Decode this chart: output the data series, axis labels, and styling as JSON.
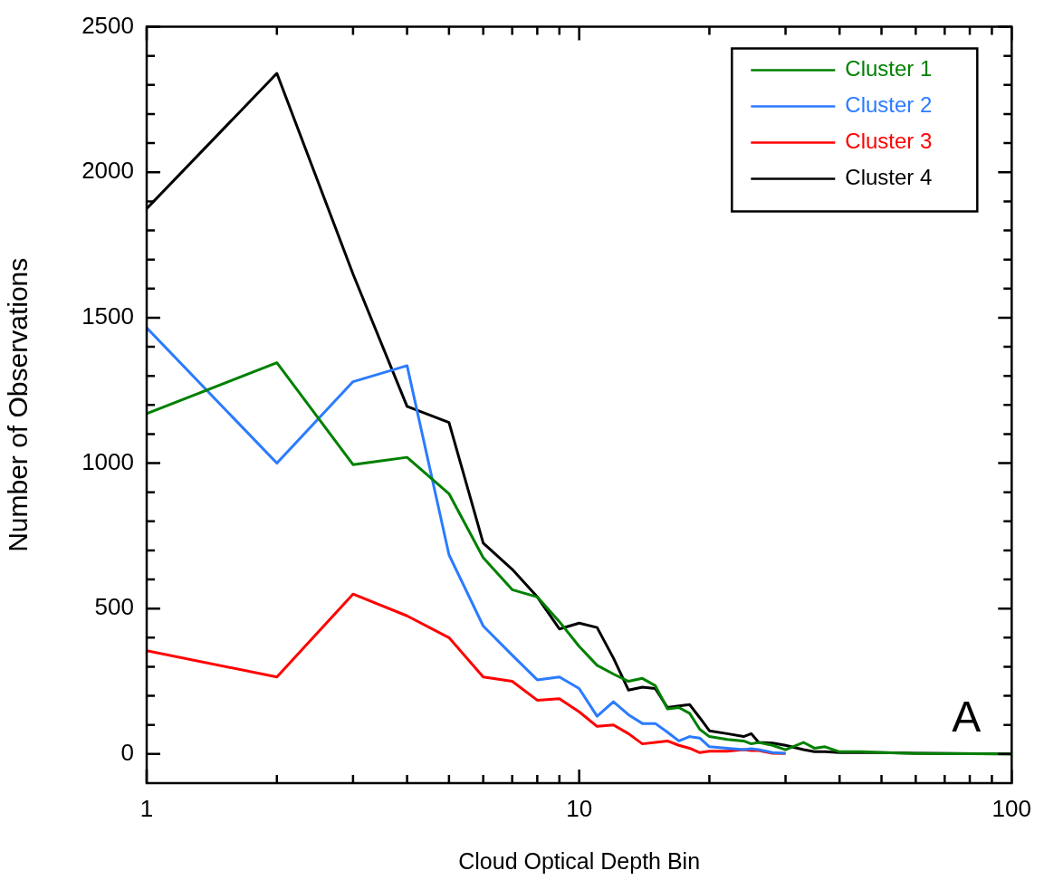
{
  "chart_data": {
    "type": "line",
    "xlabel": "Cloud Optical Depth Bin",
    "ylabel": "Number of Observations",
    "annotations": [
      "A"
    ],
    "log": "x",
    "legend": "top right",
    "grid": false,
    "line_style": "solid",
    "marker": "none",
    "x": [
      1,
      2,
      3,
      4,
      5,
      6,
      7,
      8,
      9,
      10,
      11,
      12,
      13,
      14,
      15,
      16,
      17,
      18,
      19,
      20,
      22,
      24,
      25,
      26,
      28,
      30,
      33,
      35,
      37,
      40,
      45,
      50,
      60,
      100
    ],
    "xlim": [
      1,
      100
    ],
    "ylim": [
      -100,
      2500
    ],
    "xticks": [
      1,
      {
        "value": 2,
        "label": null
      },
      {
        "value": 3,
        "label": null
      },
      {
        "value": 4,
        "label": null
      },
      {
        "value": 5,
        "label": null
      },
      {
        "value": 6,
        "label": null
      },
      {
        "value": 7,
        "label": null
      },
      {
        "value": 8,
        "label": null
      },
      {
        "value": 9,
        "label": null
      },
      10,
      {
        "value": 20,
        "label": null
      },
      {
        "value": 30,
        "label": null
      },
      {
        "value": 40,
        "label": null
      },
      {
        "value": 50,
        "label": null
      },
      {
        "value": 60,
        "label": null
      },
      {
        "value": 70,
        "label": null
      },
      {
        "value": 80,
        "label": null
      },
      {
        "value": 90,
        "label": null
      },
      100
    ],
    "yticks": [
      0,
      {
        "value": 100,
        "label": null
      },
      {
        "value": 200,
        "label": null
      },
      {
        "value": 300,
        "label": null
      },
      {
        "value": 400,
        "label": null
      },
      500,
      {
        "value": 600,
        "label": null
      },
      {
        "value": 700,
        "label": null
      },
      {
        "value": 800,
        "label": null
      },
      {
        "value": 900,
        "label": null
      },
      1000,
      {
        "value": 1100,
        "label": null
      },
      {
        "value": 1200,
        "label": null
      },
      {
        "value": 1300,
        "label": null
      },
      {
        "value": 1400,
        "label": null
      },
      1500,
      {
        "value": 1600,
        "label": null
      },
      {
        "value": 1700,
        "label": null
      },
      {
        "value": 1800,
        "label": null
      },
      {
        "value": 1900,
        "label": null
      },
      2000,
      {
        "value": 2100,
        "label": null
      },
      {
        "value": 2200,
        "label": null
      },
      {
        "value": 2300,
        "label": null
      },
      {
        "value": 2400,
        "label": null
      },
      2500
    ],
    "series": [
      {
        "name": "Cluster 1",
        "color": "#008000",
        "values": [
          1170,
          1345,
          995,
          1020,
          895,
          675,
          565,
          540,
          455,
          370,
          305,
          275,
          250,
          260,
          235,
          155,
          160,
          140,
          85,
          60,
          50,
          45,
          35,
          40,
          30,
          15,
          40,
          20,
          25,
          8,
          8,
          5,
          2,
          0
        ]
      },
      {
        "name": "Cluster 2",
        "color": "#2b7bff",
        "x": [
          1,
          2,
          3,
          4,
          5,
          6,
          7,
          8,
          9,
          10,
          11,
          12,
          13,
          14,
          15,
          16,
          17,
          18,
          19,
          20,
          22,
          24,
          25,
          26,
          28,
          30
        ],
        "values": [
          1465,
          1000,
          1280,
          1335,
          685,
          440,
          340,
          255,
          265,
          225,
          130,
          180,
          135,
          105,
          105,
          75,
          45,
          60,
          55,
          25,
          20,
          15,
          18,
          15,
          5,
          3
        ]
      },
      {
        "name": "Cluster 3",
        "color": "#ff0000",
        "x": [
          1,
          2,
          3,
          4,
          5,
          6,
          7,
          8,
          9,
          10,
          11,
          12,
          13,
          14,
          15,
          16,
          17,
          18,
          19,
          20,
          22,
          24,
          25,
          26,
          28,
          30
        ],
        "values": [
          355,
          265,
          550,
          475,
          400,
          265,
          250,
          185,
          190,
          145,
          95,
          100,
          70,
          35,
          40,
          45,
          30,
          20,
          5,
          10,
          10,
          15,
          12,
          12,
          3,
          2
        ]
      },
      {
        "name": "Cluster 4",
        "color": "#000000",
        "values": [
          1875,
          2340,
          1650,
          1195,
          1140,
          725,
          635,
          540,
          430,
          450,
          435,
          330,
          220,
          230,
          225,
          160,
          165,
          170,
          125,
          80,
          70,
          60,
          70,
          40,
          38,
          30,
          15,
          8,
          8,
          5,
          5,
          5,
          3,
          0
        ]
      }
    ]
  }
}
